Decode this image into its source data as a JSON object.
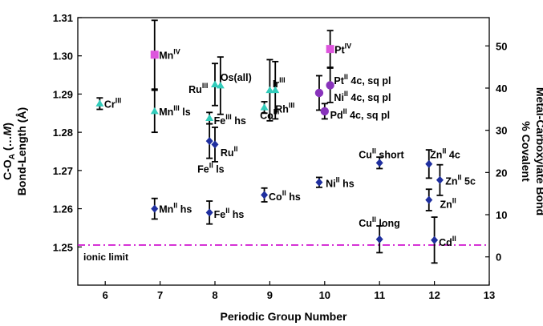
{
  "chart_data": {
    "type": "scatter",
    "xlabel": "Periodic Group Number",
    "ylabel_parts": [
      "C-O",
      "A",
      " (…",
      "M",
      ")",
      "Bond-Length (Å)"
    ],
    "y2label_lines": [
      "% Covalent",
      "Metal-Carboxylate Bond"
    ],
    "xlim": [
      5.5,
      13
    ],
    "ylim": [
      1.24,
      1.31
    ],
    "y2lim": [
      -6.7,
      56.7
    ],
    "x_ticks": [
      "6",
      "7",
      "8",
      "9",
      "10",
      "11",
      "12",
      "13"
    ],
    "y_ticks": [
      "1.25",
      "1.26",
      "1.27",
      "1.28",
      "1.29",
      "1.30",
      "1.31"
    ],
    "y2_ticks": [
      "0",
      "10",
      "20",
      "30",
      "40",
      "50"
    ],
    "reference_line": {
      "y": 1.2505,
      "color": "#cc00cc",
      "label": "ionic limit"
    },
    "colors": {
      "diamond": "#1f2f9f",
      "triangle": "#33ccbb",
      "square": "#dd55dd",
      "circle": "#8833bb",
      "errorbar": "#000000"
    },
    "series": [
      {
        "marker": "diamond",
        "points": [
          {
            "x": 6.9,
            "y": 1.26,
            "err": 0.0027
          },
          {
            "x": 7.9,
            "y": 1.259,
            "err": 0.003
          },
          {
            "x": 7.9,
            "y": 1.2777,
            "err": 0.0045
          },
          {
            "x": 8.0,
            "y": 1.2768,
            "err": 0.0045
          },
          {
            "x": 8.9,
            "y": 1.2636,
            "err": 0.0018
          },
          {
            "x": 9.9,
            "y": 1.2669,
            "err": 0.0013
          },
          {
            "x": 11.0,
            "y": 1.272,
            "err": 0.0015
          },
          {
            "x": 11.0,
            "y": 1.252,
            "err": 0.0035
          },
          {
            "x": 11.9,
            "y": 1.2717,
            "err": 0.0037
          },
          {
            "x": 11.9,
            "y": 1.2623,
            "err": 0.0028
          },
          {
            "x": 12.1,
            "y": 1.2675,
            "err": 0.004
          },
          {
            "x": 12.0,
            "y": 1.2518,
            "err": 0.006
          }
        ]
      },
      {
        "marker": "triangle",
        "points": [
          {
            "x": 5.9,
            "y": 1.2875,
            "err": 0.0015
          },
          {
            "x": 6.9,
            "y": 1.2855,
            "err": 0.0055
          },
          {
            "x": 7.9,
            "y": 1.2837,
            "err": 0.0015
          },
          {
            "x": 8.0,
            "y": 1.2925,
            "err": 0.0055
          },
          {
            "x": 8.1,
            "y": 1.2922,
            "err": 0.0075
          },
          {
            "x": 8.9,
            "y": 1.2865,
            "err": 0.0015
          },
          {
            "x": 9.0,
            "y": 1.291,
            "err": 0.008
          },
          {
            "x": 9.1,
            "y": 1.291,
            "err": 0.0075
          }
        ]
      },
      {
        "marker": "square",
        "points": [
          {
            "x": 6.9,
            "y": 1.3003,
            "err": 0.009
          },
          {
            "x": 10.1,
            "y": 1.3018,
            "err": 0.0048
          }
        ]
      },
      {
        "marker": "circle",
        "points": [
          {
            "x": 9.9,
            "y": 1.2903,
            "err": 0.0045
          },
          {
            "x": 10.1,
            "y": 1.2923,
            "err": 0.0045
          },
          {
            "x": 10.0,
            "y": 1.2855,
            "err": 0.002
          }
        ]
      }
    ],
    "annotations": [
      {
        "base": "Cr",
        "sup": "III",
        "rest": "",
        "x": 5.98,
        "y": 1.2875
      },
      {
        "base": "Mn",
        "sup": "IV",
        "rest": "",
        "x": 6.98,
        "y": 1.3003
      },
      {
        "base": "Mn",
        "sup": "III",
        "rest": " ls",
        "x": 6.98,
        "y": 1.2855
      },
      {
        "base": "Mn",
        "sup": "II",
        "rest": " hs",
        "x": 6.98,
        "y": 1.26
      },
      {
        "base": "Ru",
        "sup": "III",
        "rest": "",
        "x": 7.52,
        "y": 1.2913
      },
      {
        "base": "Os(all)",
        "sup": "",
        "rest": "",
        "x": 8.1,
        "y": 1.2945
      },
      {
        "base": "Fe",
        "sup": "III",
        "rest": " hs",
        "x": 7.98,
        "y": 1.2832
      },
      {
        "base": "Ru",
        "sup": "II",
        "rest": "",
        "x": 8.1,
        "y": 1.2748
      },
      {
        "base": "Fe",
        "sup": "II",
        "rest": " ls",
        "x": 7.68,
        "y": 1.2705
      },
      {
        "base": "Fe",
        "sup": "II",
        "rest": " hs",
        "x": 7.98,
        "y": 1.2587
      },
      {
        "base": "Ir",
        "sup": "III",
        "rest": "",
        "x": 9.05,
        "y": 1.2928
      },
      {
        "base": "Rh",
        "sup": "III",
        "rest": "",
        "x": 9.1,
        "y": 1.2862
      },
      {
        "base": "Co",
        "sup": "III",
        "rest": "",
        "x": 8.82,
        "y": 1.2845
      },
      {
        "base": "Co",
        "sup": "II",
        "rest": " hs",
        "x": 8.98,
        "y": 1.2633
      },
      {
        "base": "Ni",
        "sup": "II",
        "rest": " hs",
        "x": 10.02,
        "y": 1.2667
      },
      {
        "base": "Pt",
        "sup": "IV",
        "rest": "",
        "x": 10.18,
        "y": 1.3017
      },
      {
        "base": "Pt",
        "sup": "II",
        "rest": " 4c, sq pl",
        "x": 10.17,
        "y": 1.2937
      },
      {
        "base": "Ni",
        "sup": "II",
        "rest": " 4c, sq pl",
        "x": 10.17,
        "y": 1.2893
      },
      {
        "base": "Pd",
        "sup": "II",
        "rest": " 4c, sq pl",
        "x": 10.1,
        "y": 1.2846
      },
      {
        "base": "Cu",
        "sup": "II",
        "rest": " short",
        "x": 10.62,
        "y": 1.2743
      },
      {
        "base": "Zn",
        "sup": "II",
        "rest": " 4c",
        "x": 11.92,
        "y": 1.2743
      },
      {
        "base": "Zn",
        "sup": "II",
        "rest": " 5c",
        "x": 12.2,
        "y": 1.2673
      },
      {
        "base": "Zn",
        "sup": "II",
        "rest": "",
        "x": 12.1,
        "y": 1.2613
      },
      {
        "base": "Cu",
        "sup": "II",
        "rest": " long",
        "x": 10.62,
        "y": 1.2563
      },
      {
        "base": "Cd",
        "sup": "II",
        "rest": "",
        "x": 12.08,
        "y": 1.2513
      }
    ]
  }
}
